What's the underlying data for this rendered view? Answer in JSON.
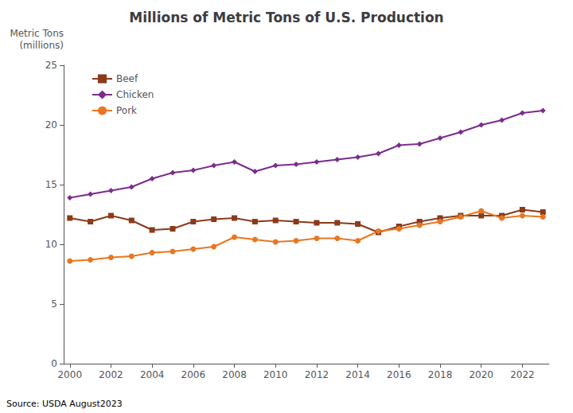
{
  "chart_data": {
    "type": "line",
    "title": "Millions of Metric Tons of U.S. Production",
    "ylabel": "Metric Tons\n(millions)",
    "annotation": "Source: USDA August2023",
    "x": [
      2000,
      2001,
      2002,
      2003,
      2004,
      2005,
      2006,
      2007,
      2008,
      2009,
      2010,
      2011,
      2012,
      2013,
      2014,
      2015,
      2016,
      2017,
      2018,
      2019,
      2020,
      2021,
      2022,
      2023
    ],
    "series": [
      {
        "name": "Beef",
        "color": "#8B3A1A",
        "marker": "square",
        "values": [
          12.2,
          11.9,
          12.4,
          12.0,
          11.2,
          11.3,
          11.9,
          12.1,
          12.2,
          11.9,
          12.0,
          11.9,
          11.8,
          11.8,
          11.7,
          11.0,
          11.5,
          11.9,
          12.2,
          12.4,
          12.4,
          12.4,
          12.9,
          12.7
        ]
      },
      {
        "name": "Chicken",
        "color": "#7B2D8B",
        "marker": "diamond",
        "values": [
          13.9,
          14.2,
          14.5,
          14.8,
          15.5,
          16.0,
          16.2,
          16.6,
          16.9,
          16.1,
          16.6,
          16.7,
          16.9,
          17.1,
          17.3,
          17.6,
          18.3,
          18.4,
          18.9,
          19.4,
          20.0,
          20.4,
          21.0,
          21.2
        ]
      },
      {
        "name": "Pork",
        "color": "#E87722",
        "marker": "circle",
        "values": [
          8.6,
          8.7,
          8.9,
          9.0,
          9.3,
          9.4,
          9.6,
          9.8,
          10.6,
          10.4,
          10.2,
          10.3,
          10.5,
          10.5,
          10.3,
          11.1,
          11.3,
          11.6,
          11.9,
          12.3,
          12.8,
          12.2,
          12.4,
          12.3
        ]
      }
    ],
    "xlim": [
      1999.7,
      2023.3
    ],
    "xticks": [
      2000,
      2002,
      2004,
      2006,
      2008,
      2010,
      2012,
      2014,
      2016,
      2018,
      2020,
      2022
    ],
    "ylim": [
      0,
      25
    ],
    "yticks": [
      0,
      5,
      10,
      15,
      20,
      25
    ],
    "grid": false,
    "legend": "upper left"
  }
}
